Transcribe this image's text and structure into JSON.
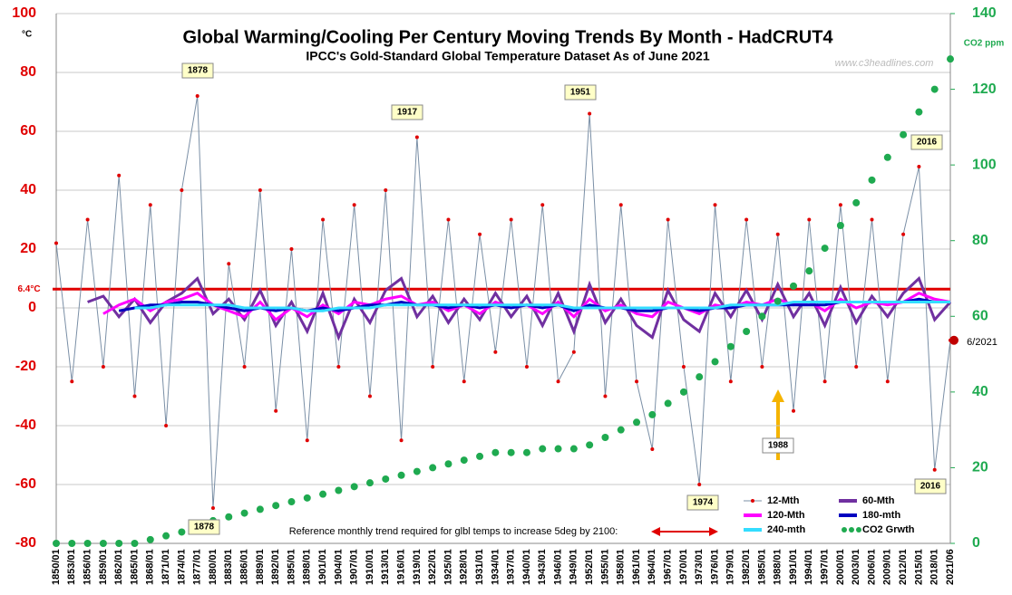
{
  "chart_data": {
    "type": "line",
    "title": "Global Warming/Cooling Per Century Moving Trends By Month - HadCRUT4",
    "subtitle": "IPCC's Gold-Standard Global Temperature Dataset As of June 2021",
    "y_unit": "°C",
    "y2_label": "CO2 ppm",
    "categories": [
      "1850/01",
      "1853/01",
      "1856/01",
      "1859/01",
      "1862/01",
      "1865/01",
      "1868/01",
      "1871/01",
      "1874/01",
      "1877/01",
      "1880/01",
      "1883/01",
      "1886/01",
      "1889/01",
      "1892/01",
      "1895/01",
      "1898/01",
      "1901/01",
      "1904/01",
      "1907/01",
      "1910/01",
      "1913/01",
      "1916/01",
      "1919/01",
      "1922/01",
      "1925/01",
      "1928/01",
      "1931/01",
      "1934/01",
      "1937/01",
      "1940/01",
      "1943/01",
      "1946/01",
      "1949/01",
      "1952/01",
      "1955/01",
      "1958/01",
      "1961/01",
      "1964/01",
      "1967/01",
      "1970/01",
      "1973/01",
      "1976/01",
      "1979/01",
      "1982/01",
      "1985/01",
      "1988/01",
      "1991/01",
      "1994/01",
      "1997/01",
      "2000/01",
      "2003/01",
      "2006/01",
      "2009/01",
      "2012/01",
      "2015/01",
      "2018/01",
      "2021/06"
    ],
    "series": [
      {
        "name": "12-Mth",
        "color": "#e00000",
        "style": "dotline",
        "values": [
          22,
          -25,
          30,
          -20,
          45,
          -30,
          35,
          -40,
          40,
          72,
          -68,
          15,
          -20,
          40,
          -35,
          20,
          -45,
          30,
          -20,
          35,
          -30,
          40,
          -45,
          58,
          -20,
          30,
          -25,
          25,
          -15,
          30,
          -20,
          35,
          -25,
          -15,
          66,
          -30,
          35,
          -25,
          -48,
          30,
          -20,
          -60,
          35,
          -25,
          30,
          -20,
          25,
          -35,
          30,
          -25,
          35,
          -20,
          30,
          -25,
          25,
          48,
          -55,
          -11
        ]
      },
      {
        "name": "60-Mth",
        "color": "#7030a0",
        "style": "line",
        "values": [
          null,
          null,
          2,
          4,
          -3,
          3,
          -5,
          2,
          5,
          10,
          -2,
          3,
          -4,
          6,
          -6,
          2,
          -8,
          5,
          -10,
          3,
          -5,
          6,
          10,
          -3,
          4,
          -5,
          3,
          -4,
          5,
          -3,
          4,
          -6,
          5,
          -8,
          8,
          -5,
          3,
          -6,
          -10,
          6,
          -4,
          -8,
          5,
          -3,
          6,
          -4,
          8,
          -3,
          5,
          -6,
          7,
          -5,
          4,
          -3,
          5,
          10,
          -4,
          2
        ]
      },
      {
        "name": "120-Mth",
        "color": "#ff00ff",
        "style": "line",
        "values": [
          null,
          null,
          null,
          -2,
          1,
          3,
          -1,
          2,
          3,
          5,
          1,
          -1,
          -3,
          2,
          -4,
          0,
          -3,
          1,
          -2,
          2,
          1,
          3,
          4,
          1,
          2,
          -1,
          1,
          -2,
          2,
          0,
          1,
          -2,
          2,
          -3,
          3,
          -1,
          1,
          -2,
          -3,
          2,
          0,
          -2,
          1,
          0,
          2,
          1,
          3,
          1,
          2,
          -1,
          3,
          0,
          2,
          1,
          2,
          5,
          3,
          2
        ]
      },
      {
        "name": "180-mth",
        "color": "#0000c0",
        "style": "line",
        "values": [
          null,
          null,
          null,
          null,
          -1,
          0,
          1,
          1,
          2,
          2,
          1,
          0,
          -1,
          0,
          -1,
          0,
          -1,
          0,
          -1,
          0,
          1,
          1,
          2,
          1,
          1,
          0,
          1,
          0,
          1,
          0,
          1,
          0,
          1,
          -1,
          1,
          0,
          0,
          -1,
          -1,
          0,
          0,
          -1,
          0,
          0,
          1,
          1,
          1,
          1,
          1,
          1,
          2,
          2,
          2,
          2,
          2,
          3,
          2,
          2
        ]
      },
      {
        "name": "240-mth",
        "color": "#33ddff",
        "style": "line",
        "values": [
          null,
          null,
          null,
          null,
          null,
          0,
          0,
          1,
          1,
          1,
          1,
          1,
          0,
          0,
          0,
          0,
          -1,
          -1,
          0,
          0,
          0,
          1,
          1,
          1,
          1,
          1,
          1,
          1,
          1,
          1,
          1,
          1,
          1,
          0,
          0,
          0,
          0,
          0,
          0,
          0,
          0,
          0,
          0,
          1,
          1,
          1,
          1,
          2,
          2,
          2,
          2,
          2,
          2,
          2,
          2,
          2,
          2,
          2
        ]
      },
      {
        "name": "CO2 Grwth",
        "color": "#1faa50",
        "style": "dots",
        "axis": "y2",
        "values": [
          0,
          0,
          0,
          0,
          0,
          0,
          1,
          2,
          3,
          4,
          6,
          7,
          8,
          9,
          10,
          11,
          12,
          13,
          14,
          15,
          16,
          17,
          18,
          19,
          20,
          21,
          22,
          23,
          24,
          24,
          24,
          25,
          25,
          25,
          26,
          28,
          30,
          32,
          34,
          37,
          40,
          44,
          48,
          52,
          56,
          60,
          64,
          68,
          72,
          78,
          84,
          90,
          96,
          102,
          108,
          114,
          120,
          128
        ]
      }
    ],
    "reference": {
      "value": 6.4,
      "label": "6.4°C"
    },
    "annotations": [
      "1878",
      "1917",
      "1951",
      "2016",
      "1974",
      "1878",
      "2016",
      "1988",
      "Reference monthly trend required for glbl temps to increase 5deg by 2100:",
      "6/2021",
      "www.c3headlines.com"
    ],
    "ylim": [
      -80,
      100
    ],
    "yticks": [
      -80,
      -60,
      -40,
      -20,
      0,
      20,
      40,
      60,
      80,
      100
    ],
    "y2lim": [
      0,
      140
    ],
    "y2ticks": [
      0,
      20,
      40,
      60,
      80,
      100,
      120,
      140
    ],
    "grid": true,
    "legend": "lower right"
  }
}
